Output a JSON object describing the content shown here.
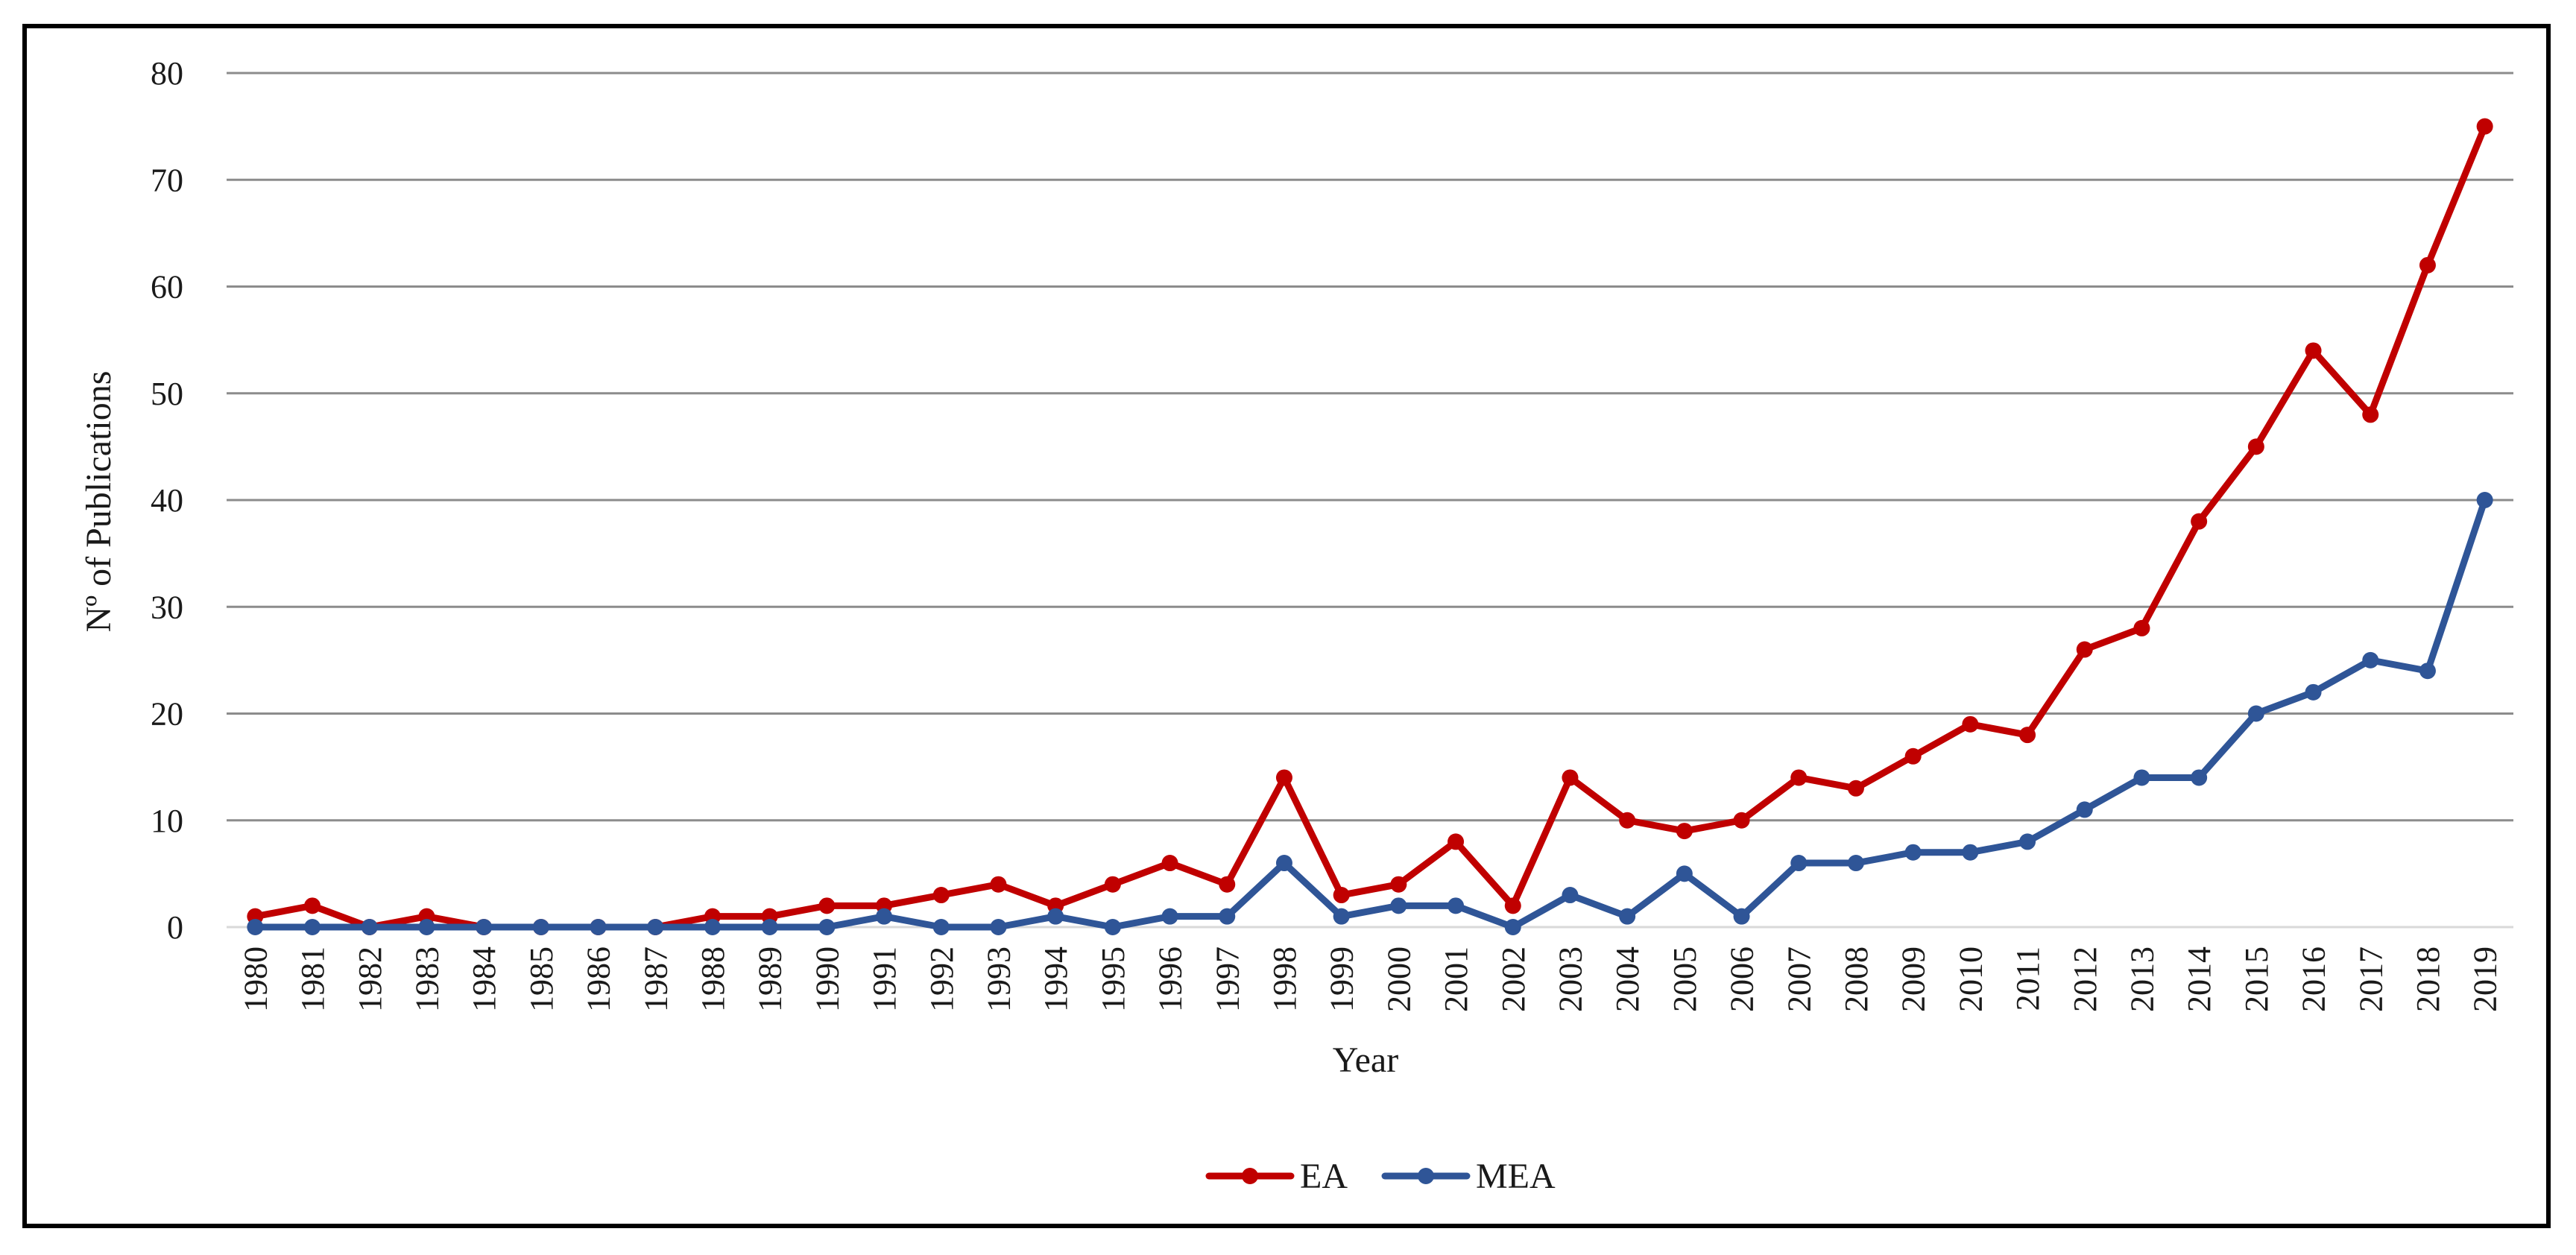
{
  "chart_data": {
    "type": "line",
    "title": "",
    "xlabel": "Year",
    "ylabel": "Nº of Publications",
    "ylim": [
      0,
      80
    ],
    "yticks": [
      0,
      10,
      20,
      30,
      40,
      50,
      60,
      70,
      80
    ],
    "grid": "horizontal",
    "legend_position": "bottom-center",
    "categories": [
      "1980",
      "1981",
      "1982",
      "1983",
      "1984",
      "1985",
      "1986",
      "1987",
      "1988",
      "1989",
      "1990",
      "1991",
      "1992",
      "1993",
      "1994",
      "1995",
      "1996",
      "1997",
      "1998",
      "1999",
      "2000",
      "2001",
      "2002",
      "2003",
      "2004",
      "2005",
      "2006",
      "2007",
      "2008",
      "2009",
      "2010",
      "2011",
      "2012",
      "2013",
      "2014",
      "2015",
      "2016",
      "2017",
      "2018",
      "2019"
    ],
    "series": [
      {
        "name": "EA",
        "color": "#c00000",
        "values": [
          1,
          2,
          0,
          1,
          0,
          0,
          0,
          0,
          1,
          1,
          2,
          2,
          3,
          4,
          2,
          4,
          6,
          4,
          14,
          3,
          4,
          8,
          2,
          14,
          10,
          9,
          10,
          14,
          13,
          16,
          19,
          18,
          26,
          28,
          38,
          45,
          54,
          48,
          62,
          75
        ]
      },
      {
        "name": "MEA",
        "color": "#2f5597",
        "values": [
          0,
          0,
          0,
          0,
          0,
          0,
          0,
          0,
          0,
          0,
          0,
          1,
          0,
          0,
          1,
          0,
          1,
          1,
          6,
          1,
          2,
          2,
          0,
          3,
          1,
          5,
          1,
          6,
          6,
          7,
          7,
          8,
          11,
          14,
          14,
          20,
          22,
          25,
          24,
          40
        ]
      }
    ]
  }
}
